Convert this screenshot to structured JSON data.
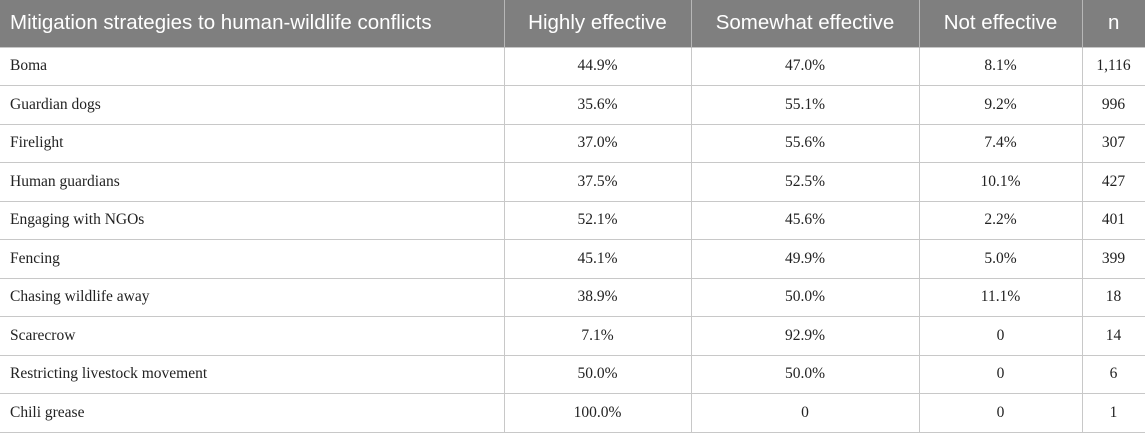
{
  "table": {
    "headers": [
      "Mitigation strategies to human-wildlife conflicts",
      "Highly effective",
      "Somewhat effective",
      "Not effective",
      "n"
    ],
    "rows": [
      [
        "Boma",
        "44.9%",
        "47.0%",
        "8.1%",
        "1,116"
      ],
      [
        "Guardian dogs",
        "35.6%",
        "55.1%",
        "9.2%",
        "996"
      ],
      [
        "Firelight",
        "37.0%",
        "55.6%",
        "7.4%",
        "307"
      ],
      [
        "Human guardians",
        "37.5%",
        "52.5%",
        "10.1%",
        "427"
      ],
      [
        "Engaging with NGOs",
        "52.1%",
        "45.6%",
        "2.2%",
        "401"
      ],
      [
        "Fencing",
        "45.1%",
        "49.9%",
        "5.0%",
        "399"
      ],
      [
        "Chasing wildlife away",
        "38.9%",
        "50.0%",
        "11.1%",
        "18"
      ],
      [
        "Scarecrow",
        "7.1%",
        "92.9%",
        "0",
        "14"
      ],
      [
        "Restricting livestock movement",
        "50.0%",
        "50.0%",
        "0",
        "6"
      ],
      [
        "Chili grease",
        "100.0%",
        "0",
        "0",
        "1"
      ]
    ]
  },
  "colors": {
    "header_background": "#7f7f7f",
    "header_text": "#ffffff",
    "grid_lines": "#c8c8c8"
  }
}
